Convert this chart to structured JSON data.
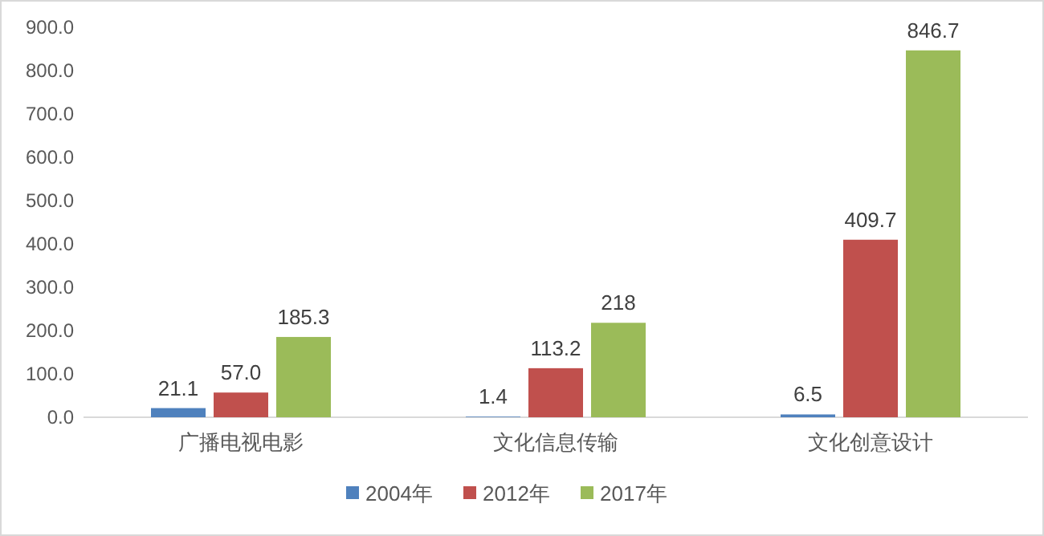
{
  "chart_data": {
    "type": "bar",
    "categories": [
      "广播电视电影",
      "文化信息传输",
      "文化创意设计"
    ],
    "series": [
      {
        "name": "2004年",
        "color": "#4f81bd",
        "values": [
          21.1,
          1.4,
          6.5
        ],
        "value_labels": [
          "21.1",
          "1.4",
          "6.5"
        ]
      },
      {
        "name": "2012年",
        "color": "#c0504d",
        "values": [
          57.0,
          113.2,
          409.7
        ],
        "value_labels": [
          "57.0",
          "113.2",
          "409.7"
        ]
      },
      {
        "name": "2017年",
        "color": "#9bbb59",
        "values": [
          185.3,
          218,
          846.7
        ],
        "value_labels": [
          "185.3",
          "218",
          "846.7"
        ]
      }
    ],
    "ylim": [
      0,
      900
    ],
    "yticks": [
      {
        "value": 0,
        "label": "0.0"
      },
      {
        "value": 100,
        "label": "100.0"
      },
      {
        "value": 200,
        "label": "200.0"
      },
      {
        "value": 300,
        "label": "300.0"
      },
      {
        "value": 400,
        "label": "400.0"
      },
      {
        "value": 500,
        "label": "500.0"
      },
      {
        "value": 600,
        "label": "600.0"
      },
      {
        "value": 700,
        "label": "700.0"
      },
      {
        "value": 800,
        "label": "800.0"
      },
      {
        "value": 900,
        "label": "900.0"
      }
    ],
    "grid": false,
    "legend": "bottom"
  }
}
